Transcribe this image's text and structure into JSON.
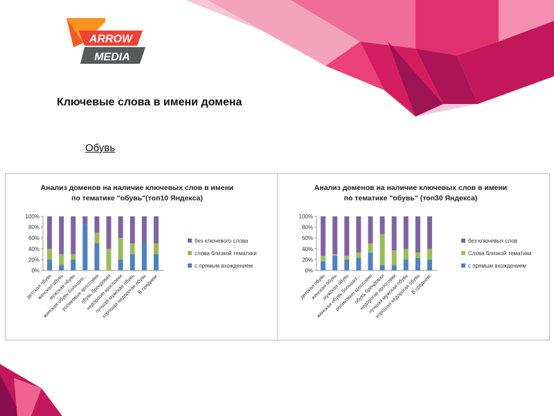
{
  "logo": {
    "line1": "ARROW",
    "line2": "MEDIA"
  },
  "page": {
    "title": "Ключевые слова в имени домена",
    "subtitle": "Обувь"
  },
  "colors": {
    "series_direct": "#4F81BD",
    "series_similar": "#9BBB59",
    "series_none": "#8064A2",
    "axis": "#9a9a9a",
    "text": "#333333"
  },
  "chart_data": [
    {
      "type": "bar",
      "stacked": true,
      "title": [
        "Анализ доменов на наличие ключевых слов в имени",
        "по тематике \"обувь\"(топ10 Яндекса)"
      ],
      "categories": [
        "детская обувь",
        "женская обувь",
        "мужская обувь",
        "женская обувь больших...",
        "роликовые кроссовки",
        "обувь брендовая",
        "недорогие кроссовки",
        "лучшая мужская обувь",
        "хорошая недорогая обувь",
        "В среднем:"
      ],
      "series": [
        {
          "name": "с прямым вхождением",
          "values": [
            20,
            10,
            20,
            85,
            50,
            0,
            20,
            30,
            50,
            30
          ]
        },
        {
          "name": "слова близкой тематики",
          "values": [
            20,
            20,
            10,
            0,
            20,
            40,
            40,
            20,
            0,
            20
          ]
        },
        {
          "name": "без ключевого слова",
          "values": [
            60,
            70,
            70,
            15,
            30,
            60,
            40,
            50,
            50,
            50
          ]
        }
      ],
      "yticks": [
        "0%",
        "20%",
        "40%",
        "60%",
        "80%",
        "100%"
      ],
      "ylim": [
        0,
        100
      ],
      "legend": "right"
    },
    {
      "type": "bar",
      "stacked": true,
      "title": [
        "Анализ доменов на наличие ключевых слов в имени",
        "по тематике \"обувь\" (топ30 Яндекса)"
      ],
      "categories": [
        "детская обувь",
        "женская обувь",
        "мужская обувь",
        "женская обувь больших...",
        "роликовые кроссовки",
        "обувь брендовая",
        "недорогие кроссовки",
        "лучшая мужская обувь",
        "хорошая недорогая обувь",
        "В среднем:"
      ],
      "series": [
        {
          "name": "с прямым вхождением",
          "values": [
            17,
            27,
            20,
            23,
            33,
            10,
            10,
            20,
            23,
            20
          ]
        },
        {
          "name": "Слова близкой тематики",
          "values": [
            10,
            3,
            7,
            10,
            17,
            57,
            27,
            20,
            10,
            20
          ]
        },
        {
          "name": "без ключевых слов",
          "values": [
            73,
            70,
            73,
            67,
            50,
            33,
            63,
            60,
            67,
            60
          ]
        }
      ],
      "yticks": [
        "0%",
        "20%",
        "40%",
        "60%",
        "80%",
        "100%"
      ],
      "ylim": [
        0,
        100
      ],
      "legend": "right"
    }
  ]
}
